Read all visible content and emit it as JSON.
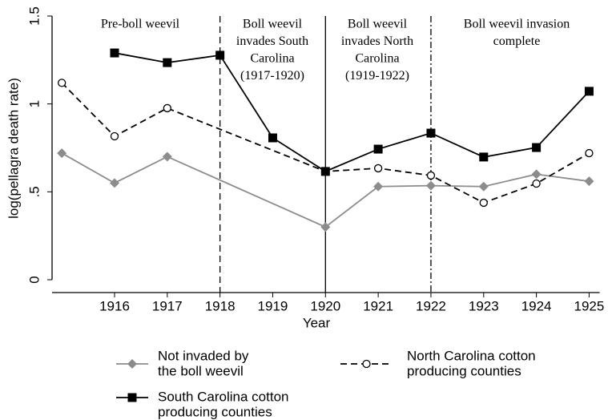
{
  "chart_data": {
    "type": "line",
    "xlabel": "Year",
    "ylabel": "log(pellagra death rate)",
    "xlim": [
      1914.8,
      1925.2
    ],
    "ylim": [
      0,
      1.5
    ],
    "xticks": [
      1916,
      1917,
      1918,
      1919,
      1920,
      1921,
      1922,
      1923,
      1924,
      1925
    ],
    "yticks": [
      0,
      {
        "value": 0.5,
        "label": ".5"
      },
      1,
      1.5
    ],
    "vlines": [
      {
        "value": 1918,
        "style": "dashed"
      },
      {
        "value": 1920,
        "style": "solid"
      },
      {
        "value": 1922,
        "style": "dashdot"
      }
    ],
    "annotations": [
      {
        "lines": [
          "Pre-boll weevil"
        ]
      },
      {
        "lines": [
          "Boll weevil",
          "invades South",
          "Carolina",
          "(1917-1920)"
        ]
      },
      {
        "lines": [
          "Boll weevil",
          "invades North",
          "Carolina",
          "(1919-1922)"
        ]
      },
      {
        "lines": [
          "Boll weevil invasion",
          "complete"
        ]
      }
    ],
    "series": [
      {
        "name": [
          "Not invaded by",
          "the boll weevil"
        ],
        "color": "#8c8c8c",
        "style": "solid",
        "marker": "diamond",
        "x": [
          1915,
          1916,
          1917,
          1920,
          1921,
          1922,
          1923,
          1924,
          1925
        ],
        "values": [
          0.72,
          0.55,
          0.7,
          0.3,
          0.53,
          0.535,
          0.53,
          0.6,
          0.56
        ]
      },
      {
        "name": [
          "North Carolina cotton",
          "producing counties"
        ],
        "color": "#000000",
        "style": "dashed",
        "marker": "circle",
        "x": [
          1915,
          1916,
          1917,
          1920,
          1921,
          1922,
          1923,
          1924,
          1925
        ],
        "values": [
          1.12,
          0.816,
          0.976,
          0.616,
          0.634,
          0.593,
          0.438,
          0.547,
          0.72
        ]
      },
      {
        "name": [
          "South Carolina cotton",
          "producing counties"
        ],
        "color": "#000000",
        "style": "solid",
        "marker": "square",
        "x": [
          1916,
          1917,
          1918,
          1919,
          1920,
          1921,
          1922,
          1923,
          1924,
          1925
        ],
        "values": [
          1.29,
          1.235,
          1.277,
          0.807,
          0.616,
          0.743,
          0.834,
          0.698,
          0.752,
          1.072
        ]
      }
    ]
  }
}
